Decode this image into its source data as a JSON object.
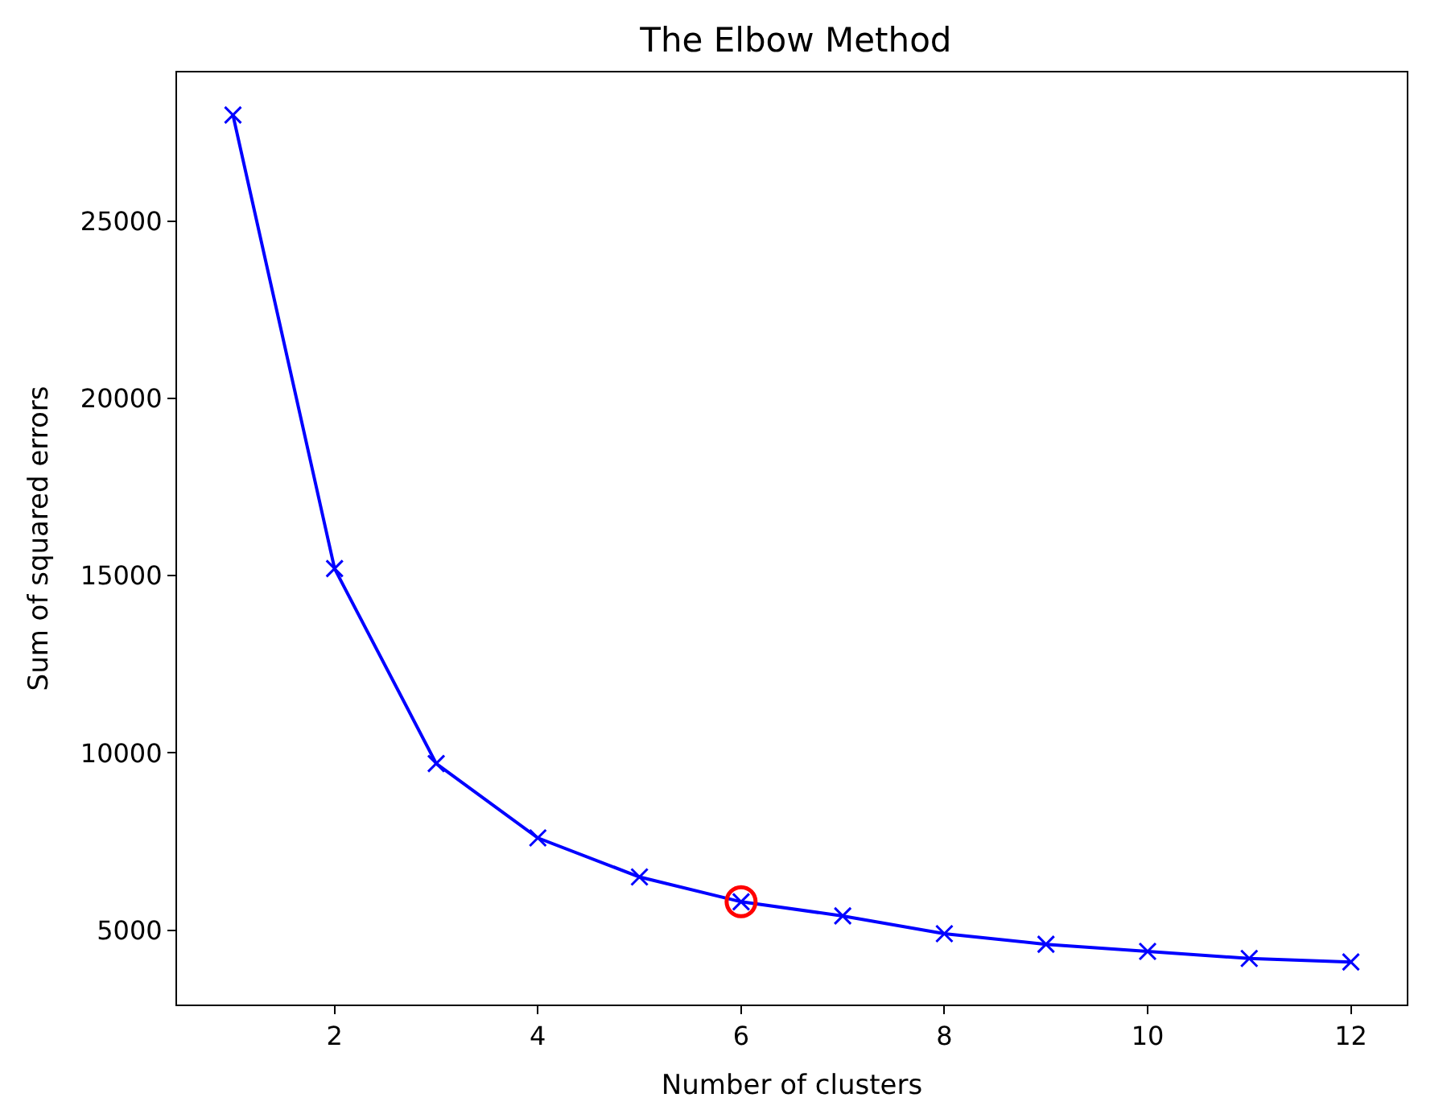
{
  "chart_data": {
    "type": "line",
    "title": "The Elbow Method",
    "xlabel": "Number of clusters",
    "ylabel": "Sum of squared errors",
    "x": [
      1,
      2,
      3,
      4,
      5,
      6,
      7,
      8,
      9,
      10,
      11,
      12
    ],
    "series": [
      {
        "color": "#0000ff",
        "marker": "cross",
        "values": [
          28000,
          15200,
          9700,
          7600,
          6500,
          5800,
          5400,
          4900,
          4600,
          4400,
          4200,
          4100
        ]
      },
      {
        "type": "scatter",
        "color": "#ff0000",
        "marker": "circle",
        "values": [
          null,
          null,
          null,
          null,
          null,
          5800,
          null,
          null,
          null,
          null,
          null,
          null
        ]
      }
    ],
    "xlim": [
      0.45,
      12.55
    ],
    "ylim": [
      2900,
      29200
    ],
    "xticks": [
      2,
      4,
      6,
      8,
      10,
      12
    ],
    "yticks": [
      5000,
      10000,
      15000,
      20000,
      25000
    ]
  }
}
